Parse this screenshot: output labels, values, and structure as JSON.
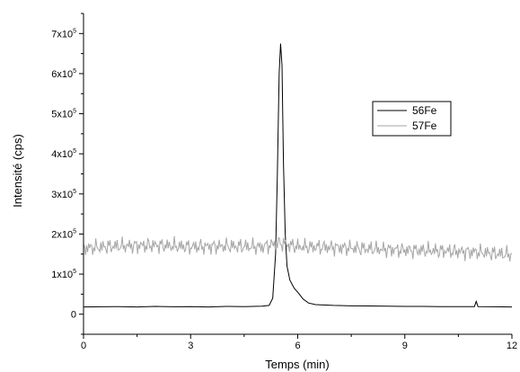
{
  "chart_data": {
    "type": "line",
    "title": "",
    "xlabel": "Temps (min)",
    "ylabel": "Intensité (cps)",
    "xlim": [
      0,
      12
    ],
    "ylim": [
      -50000,
      750000
    ],
    "x_ticks": [
      0,
      3,
      6,
      9,
      12
    ],
    "y_ticks": [
      {
        "value": 0,
        "base": "0",
        "exp": ""
      },
      {
        "value": 100000,
        "base": "1x10",
        "exp": "5"
      },
      {
        "value": 200000,
        "base": "2x10",
        "exp": "5"
      },
      {
        "value": 300000,
        "base": "3x10",
        "exp": "5"
      },
      {
        "value": 400000,
        "base": "4x10",
        "exp": "5"
      },
      {
        "value": 500000,
        "base": "5x10",
        "exp": "5"
      },
      {
        "value": 600000,
        "base": "6x10",
        "exp": "5"
      },
      {
        "value": 700000,
        "base": "7x10",
        "exp": "5"
      }
    ],
    "grid": false,
    "legend_position": "right",
    "series": [
      {
        "name": "56Fe",
        "color": "#000000",
        "points": [
          [
            0,
            18000
          ],
          [
            0.5,
            18500
          ],
          [
            1,
            19000
          ],
          [
            1.5,
            18000
          ],
          [
            2,
            19500
          ],
          [
            2.5,
            18500
          ],
          [
            3,
            19000
          ],
          [
            3.5,
            18000
          ],
          [
            4,
            19500
          ],
          [
            4.5,
            19000
          ],
          [
            5,
            20000
          ],
          [
            5.2,
            22000
          ],
          [
            5.3,
            40000
          ],
          [
            5.38,
            150000
          ],
          [
            5.43,
            350000
          ],
          [
            5.48,
            600000
          ],
          [
            5.52,
            675000
          ],
          [
            5.56,
            620000
          ],
          [
            5.6,
            380000
          ],
          [
            5.65,
            200000
          ],
          [
            5.7,
            120000
          ],
          [
            5.78,
            85000
          ],
          [
            5.9,
            65000
          ],
          [
            6,
            55000
          ],
          [
            6.15,
            38000
          ],
          [
            6.3,
            28000
          ],
          [
            6.5,
            24000
          ],
          [
            7,
            22000
          ],
          [
            7.5,
            21000
          ],
          [
            8,
            20500
          ],
          [
            8.5,
            20000
          ],
          [
            9,
            19500
          ],
          [
            9.5,
            19500
          ],
          [
            10,
            19000
          ],
          [
            10.5,
            19000
          ],
          [
            10.95,
            19000
          ],
          [
            11,
            32000
          ],
          [
            11.05,
            19000
          ],
          [
            11.5,
            18500
          ],
          [
            12,
            18000
          ]
        ]
      },
      {
        "name": "57Fe",
        "color": "#a6a6a6",
        "points": [
          [
            0,
            165000
          ],
          [
            1,
            170000
          ],
          [
            2,
            172000
          ],
          [
            3,
            168000
          ],
          [
            4,
            170000
          ],
          [
            5,
            168000
          ],
          [
            5.5,
            178000
          ],
          [
            6,
            168000
          ],
          [
            7,
            167000
          ],
          [
            8,
            163000
          ],
          [
            9,
            160000
          ],
          [
            10,
            158000
          ],
          [
            11,
            155000
          ],
          [
            12,
            148000
          ]
        ],
        "noise_amplitude": 25000
      }
    ]
  }
}
